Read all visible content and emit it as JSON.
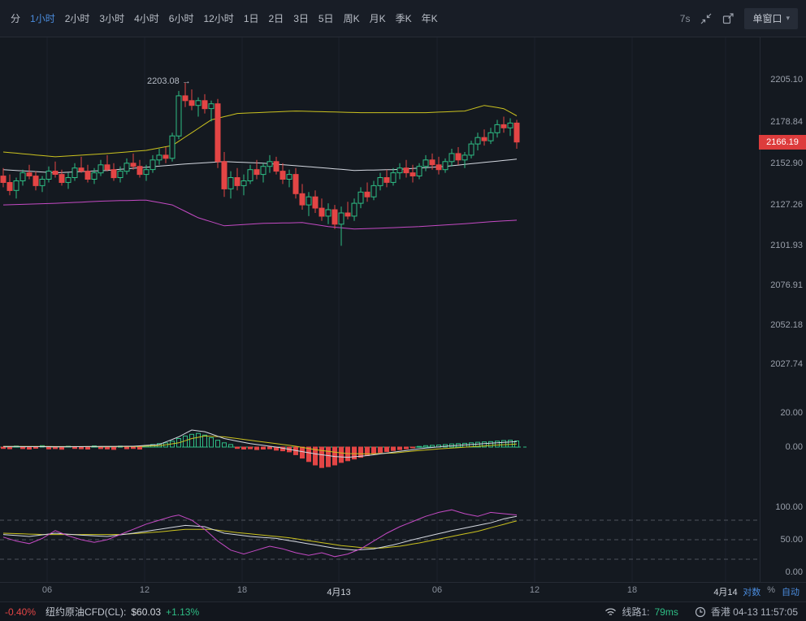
{
  "toolbar": {
    "timeframes": [
      {
        "label": "分",
        "active": false
      },
      {
        "label": "1小时",
        "active": true
      },
      {
        "label": "2小时",
        "active": false
      },
      {
        "label": "3小时",
        "active": false
      },
      {
        "label": "4小时",
        "active": false
      },
      {
        "label": "6小时",
        "active": false
      },
      {
        "label": "12小时",
        "active": false
      },
      {
        "label": "1日",
        "active": false
      },
      {
        "label": "2日",
        "active": false
      },
      {
        "label": "3日",
        "active": false
      },
      {
        "label": "5日",
        "active": false
      },
      {
        "label": "周K",
        "active": false
      },
      {
        "label": "月K",
        "active": false
      },
      {
        "label": "季K",
        "active": false
      },
      {
        "label": "年K",
        "active": false
      }
    ],
    "refresh_interval": "7s",
    "window_mode": "单窗口"
  },
  "colors": {
    "up": "#2ebd85",
    "down": "#e34545",
    "boll_upper": "#cbc21f",
    "boll_mid": "#d4d8e0",
    "boll_lower": "#c44ac4",
    "kdj_k": "#d4d8e0",
    "kdj_d": "#cbc21f",
    "kdj_j": "#c44ac4",
    "accent_blue": "#4a8bdc",
    "badge_bg": "#dd3c3c"
  },
  "chart_data": {
    "type": "candlestick",
    "timeframe": "1小时",
    "annotation": {
      "text": "2203.08 →"
    },
    "main": {
      "ylim": [
        2006.5,
        2231.4
      ],
      "axis_labels": [
        "2205.10",
        "2178.84",
        "2152.90",
        "2127.26",
        "2101.93",
        "2076.91",
        "2052.18",
        "2027.74"
      ],
      "current_price": 2166.19,
      "current_price_label": "2166.19",
      "candles": [
        [
          2145,
          2150,
          2138,
          2141
        ],
        [
          2141,
          2146,
          2133,
          2136
        ],
        [
          2136,
          2144,
          2131,
          2142
        ],
        [
          2142,
          2149,
          2139,
          2147
        ],
        [
          2147,
          2152,
          2143,
          2145
        ],
        [
          2145,
          2148,
          2136,
          2139
        ],
        [
          2139,
          2145,
          2135,
          2143
        ],
        [
          2143,
          2151,
          2141,
          2148
        ],
        [
          2148,
          2154,
          2144,
          2146
        ],
        [
          2146,
          2149,
          2139,
          2141
        ],
        [
          2141,
          2147,
          2137,
          2144
        ],
        [
          2144,
          2153,
          2142,
          2150
        ],
        [
          2150,
          2157,
          2147,
          2148
        ],
        [
          2148,
          2152,
          2141,
          2143
        ],
        [
          2143,
          2150,
          2140,
          2147
        ],
        [
          2147,
          2155,
          2145,
          2152
        ],
        [
          2152,
          2158,
          2148,
          2149
        ],
        [
          2149,
          2153,
          2142,
          2144
        ],
        [
          2144,
          2151,
          2141,
          2148
        ],
        [
          2148,
          2156,
          2146,
          2153
        ],
        [
          2153,
          2159,
          2149,
          2151
        ],
        [
          2151,
          2155,
          2144,
          2146
        ],
        [
          2146,
          2152,
          2142,
          2149
        ],
        [
          2149,
          2158,
          2147,
          2155
        ],
        [
          2155,
          2162,
          2152,
          2158
        ],
        [
          2158,
          2163,
          2153,
          2156
        ],
        [
          2156,
          2172,
          2154,
          2170
        ],
        [
          2170,
          2198,
          2168,
          2195
        ],
        [
          2195,
          2203.08,
          2188,
          2192
        ],
        [
          2192,
          2199,
          2186,
          2189
        ],
        [
          2189,
          2194,
          2182,
          2192
        ],
        [
          2192,
          2196,
          2184,
          2187
        ],
        [
          2187,
          2192,
          2179,
          2190
        ],
        [
          2190,
          2193,
          2150,
          2154
        ],
        [
          2154,
          2160,
          2132,
          2137
        ],
        [
          2137,
          2148,
          2131,
          2144
        ],
        [
          2144,
          2150,
          2136,
          2139
        ],
        [
          2139,
          2146,
          2133,
          2142
        ],
        [
          2142,
          2152,
          2140,
          2149
        ],
        [
          2149,
          2155,
          2143,
          2146
        ],
        [
          2146,
          2153,
          2141,
          2151
        ],
        [
          2151,
          2158,
          2147,
          2154
        ],
        [
          2154,
          2157,
          2146,
          2148
        ],
        [
          2148,
          2153,
          2140,
          2143
        ],
        [
          2143,
          2149,
          2138,
          2146
        ],
        [
          2146,
          2150,
          2131,
          2134
        ],
        [
          2134,
          2140,
          2124,
          2127
        ],
        [
          2127,
          2135,
          2120,
          2132
        ],
        [
          2132,
          2136,
          2122,
          2125
        ],
        [
          2125,
          2131,
          2117,
          2120
        ],
        [
          2120,
          2128,
          2115,
          2124
        ],
        [
          2124,
          2127,
          2112,
          2115
        ],
        [
          2115,
          2126,
          2101.5,
          2122
        ],
        [
          2122,
          2129,
          2118,
          2120
        ],
        [
          2120,
          2131,
          2117,
          2128
        ],
        [
          2128,
          2138,
          2125,
          2135
        ],
        [
          2135,
          2141,
          2129,
          2132
        ],
        [
          2132,
          2142,
          2130,
          2139
        ],
        [
          2139,
          2147,
          2136,
          2144
        ],
        [
          2144,
          2149,
          2138,
          2141
        ],
        [
          2141,
          2150,
          2139,
          2147
        ],
        [
          2147,
          2153,
          2143,
          2150
        ],
        [
          2150,
          2155,
          2144,
          2147
        ],
        [
          2147,
          2152,
          2141,
          2145
        ],
        [
          2145,
          2153,
          2143,
          2151
        ],
        [
          2151,
          2158,
          2148,
          2155
        ],
        [
          2155,
          2159,
          2149,
          2152
        ],
        [
          2152,
          2157,
          2146,
          2149
        ],
        [
          2149,
          2156,
          2147,
          2154
        ],
        [
          2154,
          2162,
          2151,
          2159
        ],
        [
          2159,
          2163,
          2152,
          2155
        ],
        [
          2155,
          2160,
          2150,
          2158
        ],
        [
          2158,
          2167,
          2156,
          2165
        ],
        [
          2165,
          2172,
          2161,
          2169
        ],
        [
          2169,
          2174,
          2164,
          2167
        ],
        [
          2167,
          2175,
          2165,
          2172
        ],
        [
          2172,
          2180,
          2169,
          2177
        ],
        [
          2177,
          2182,
          2172,
          2175
        ],
        [
          2175,
          2181,
          2170,
          2178
        ],
        [
          2178,
          2180,
          2162,
          2166.19
        ]
      ],
      "boll_upper_pts": [
        [
          0,
          2160
        ],
        [
          8,
          2157
        ],
        [
          16,
          2159
        ],
        [
          22,
          2161
        ],
        [
          26,
          2164
        ],
        [
          29,
          2172
        ],
        [
          32,
          2180
        ],
        [
          36,
          2184
        ],
        [
          45,
          2185.5
        ],
        [
          55,
          2184.5
        ],
        [
          65,
          2184.5
        ],
        [
          71,
          2185.5
        ],
        [
          74,
          2189
        ],
        [
          77,
          2187
        ],
        [
          79,
          2182.5
        ]
      ],
      "boll_mid_pts": [
        [
          0,
          2149
        ],
        [
          8,
          2147
        ],
        [
          16,
          2148.5
        ],
        [
          22,
          2150.5
        ],
        [
          28,
          2152.5
        ],
        [
          34,
          2154
        ],
        [
          40,
          2153
        ],
        [
          48,
          2150.5
        ],
        [
          54,
          2148.5
        ],
        [
          60,
          2149
        ],
        [
          68,
          2151
        ],
        [
          74,
          2153.5
        ],
        [
          79,
          2155.5
        ]
      ],
      "boll_lower_pts": [
        [
          0,
          2127
        ],
        [
          8,
          2128
        ],
        [
          16,
          2129.5
        ],
        [
          22,
          2130
        ],
        [
          26,
          2127
        ],
        [
          30,
          2119
        ],
        [
          34,
          2114
        ],
        [
          40,
          2115.5
        ],
        [
          46,
          2116
        ],
        [
          50,
          2113.5
        ],
        [
          54,
          2112
        ],
        [
          58,
          2112.5
        ],
        [
          64,
          2113.5
        ],
        [
          70,
          2115
        ],
        [
          75,
          2116.5
        ],
        [
          79,
          2117.5
        ]
      ]
    },
    "macd": {
      "ylim": [
        -20,
        28.6
      ],
      "axis_labels": [
        "20.00",
        "0.00"
      ],
      "hist": [
        -0.8,
        -1,
        0.6,
        -0.9,
        -1.2,
        -0.7,
        0.8,
        -1.1,
        -0.9,
        -1.3,
        0.5,
        -0.8,
        -1,
        -1.2,
        0.7,
        -0.9,
        -1.1,
        -1.4,
        0.6,
        -1,
        -0.8,
        -1.2,
        0.9,
        1.5,
        2,
        2.5,
        3.5,
        5,
        6.5,
        7.5,
        8,
        7,
        5.5,
        4,
        2.5,
        1.5,
        -0.8,
        -1.2,
        -1,
        -1.5,
        -1.2,
        -1,
        -1.8,
        -2.2,
        -2.8,
        -4.5,
        -6.5,
        -8.5,
        -10.5,
        -12,
        -11.5,
        -10.5,
        -9,
        -8,
        -7,
        -6,
        -5,
        -4,
        -3.2,
        -2.6,
        -2,
        -1.5,
        -1,
        -0.5,
        0.4,
        0.8,
        1,
        1.2,
        1.5,
        1.8,
        2,
        2.2,
        2.5,
        2.8,
        3,
        3.2,
        3.5,
        3.8,
        4,
        3.6
      ],
      "dif_pts": [
        [
          0,
          0.3
        ],
        [
          10,
          0.2
        ],
        [
          20,
          0.5
        ],
        [
          24,
          1.5
        ],
        [
          27,
          6
        ],
        [
          29,
          10
        ],
        [
          31,
          9
        ],
        [
          34,
          5
        ],
        [
          38,
          2
        ],
        [
          42,
          0
        ],
        [
          45,
          -2
        ],
        [
          48,
          -4
        ],
        [
          51,
          -5.5
        ],
        [
          53,
          -6
        ],
        [
          56,
          -5
        ],
        [
          60,
          -3
        ],
        [
          64,
          -1
        ],
        [
          68,
          0.5
        ],
        [
          72,
          1.5
        ],
        [
          76,
          2.5
        ],
        [
          79,
          3.2
        ]
      ],
      "dea_pts": [
        [
          0,
          0.4
        ],
        [
          10,
          0.3
        ],
        [
          20,
          0.3
        ],
        [
          24,
          0.8
        ],
        [
          27,
          2.5
        ],
        [
          29,
          5
        ],
        [
          31,
          6.5
        ],
        [
          34,
          6
        ],
        [
          38,
          4
        ],
        [
          42,
          2
        ],
        [
          45,
          0.5
        ],
        [
          48,
          -1.5
        ],
        [
          51,
          -3
        ],
        [
          53,
          -3.8
        ],
        [
          56,
          -4
        ],
        [
          60,
          -3.5
        ],
        [
          64,
          -2
        ],
        [
          68,
          -0.8
        ],
        [
          72,
          0.2
        ],
        [
          76,
          1.2
        ],
        [
          79,
          1.8
        ]
      ]
    },
    "kdj": {
      "ylim": [
        -15,
        140
      ],
      "axis_labels": [
        "100.00",
        "50.00",
        "0.00"
      ],
      "guides": [
        80,
        50,
        20
      ],
      "k_pts": [
        [
          0,
          58
        ],
        [
          4,
          55
        ],
        [
          8,
          60
        ],
        [
          12,
          57
        ],
        [
          16,
          55
        ],
        [
          20,
          60
        ],
        [
          24,
          66
        ],
        [
          28,
          72
        ],
        [
          31,
          70
        ],
        [
          34,
          60
        ],
        [
          38,
          55
        ],
        [
          42,
          52
        ],
        [
          45,
          47
        ],
        [
          48,
          42
        ],
        [
          51,
          37
        ],
        [
          54,
          34
        ],
        [
          57,
          36
        ],
        [
          60,
          42
        ],
        [
          63,
          50
        ],
        [
          66,
          57
        ],
        [
          69,
          64
        ],
        [
          72,
          70
        ],
        [
          75,
          76
        ],
        [
          77,
          82
        ],
        [
          79,
          86
        ]
      ],
      "d_pts": [
        [
          0,
          60
        ],
        [
          6,
          58
        ],
        [
          12,
          58
        ],
        [
          18,
          58
        ],
        [
          24,
          62
        ],
        [
          28,
          66
        ],
        [
          32,
          66
        ],
        [
          36,
          61
        ],
        [
          40,
          57
        ],
        [
          44,
          53
        ],
        [
          48,
          47
        ],
        [
          52,
          41
        ],
        [
          55,
          38
        ],
        [
          58,
          37
        ],
        [
          61,
          40
        ],
        [
          64,
          45
        ],
        [
          67,
          51
        ],
        [
          70,
          57
        ],
        [
          73,
          63
        ],
        [
          76,
          71
        ],
        [
          79,
          79
        ]
      ],
      "j_pts": [
        [
          0,
          54
        ],
        [
          2,
          48
        ],
        [
          4,
          44
        ],
        [
          6,
          52
        ],
        [
          8,
          64
        ],
        [
          10,
          56
        ],
        [
          12,
          50
        ],
        [
          14,
          46
        ],
        [
          16,
          50
        ],
        [
          18,
          58
        ],
        [
          20,
          66
        ],
        [
          22,
          74
        ],
        [
          24,
          80
        ],
        [
          26,
          86
        ],
        [
          27,
          88
        ],
        [
          29,
          80
        ],
        [
          31,
          66
        ],
        [
          33,
          48
        ],
        [
          35,
          34
        ],
        [
          37,
          28
        ],
        [
          39,
          34
        ],
        [
          41,
          40
        ],
        [
          43,
          36
        ],
        [
          45,
          30
        ],
        [
          47,
          26
        ],
        [
          49,
          30
        ],
        [
          51,
          24
        ],
        [
          53,
          28
        ],
        [
          55,
          36
        ],
        [
          57,
          48
        ],
        [
          59,
          60
        ],
        [
          61,
          70
        ],
        [
          63,
          78
        ],
        [
          65,
          86
        ],
        [
          67,
          92
        ],
        [
          69,
          96
        ],
        [
          71,
          90
        ],
        [
          73,
          86
        ],
        [
          75,
          92
        ],
        [
          77,
          90
        ],
        [
          79,
          88
        ]
      ]
    }
  },
  "xaxis": {
    "labels": [
      "06",
      "12",
      "18",
      "4月13",
      "06",
      "12",
      "18",
      "4月14"
    ],
    "options": [
      {
        "label": "对数",
        "active": true
      },
      {
        "label": "%",
        "active": false
      },
      {
        "label": "自动",
        "active": true
      }
    ]
  },
  "statusbar": {
    "prev_change": "-0.40%",
    "instrument": "纽约原油CFD(CL):",
    "price": "$60.03",
    "change_pct": "+1.13%",
    "line_label": "线路1:",
    "latency": "79ms",
    "location_time": "香港 04-13 11:57:05"
  }
}
